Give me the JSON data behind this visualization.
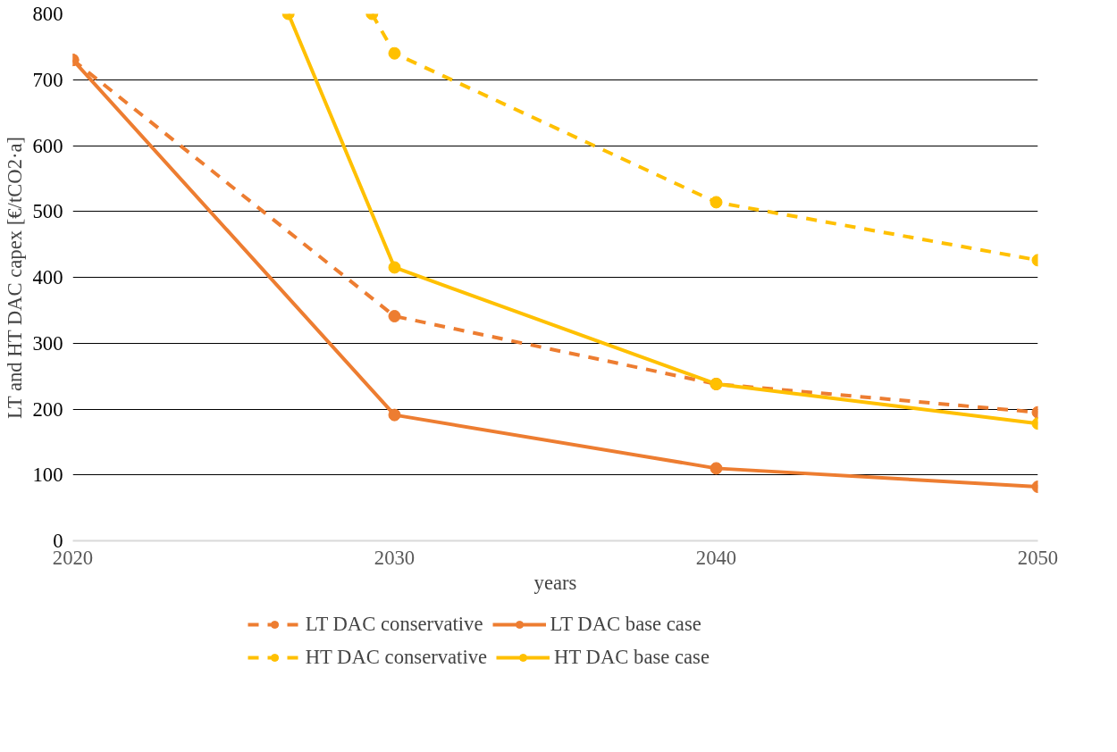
{
  "chart_data": {
    "type": "line",
    "xlabel": "years",
    "ylabel": "LT and HT DAC capex [€/tCO2·a]",
    "x": [
      2020,
      2030,
      2040,
      2050
    ],
    "series": [
      {
        "name": "LT DAC conservative",
        "color": "#ed7d31",
        "line_style": "dashed",
        "values": [
          730,
          341,
          238,
          195
        ]
      },
      {
        "name": "LT DAC base case",
        "color": "#ed7d31",
        "line_style": "solid",
        "values": [
          730,
          191,
          110,
          82
        ]
      },
      {
        "name": "HT DAC conservative",
        "color": "#ffc000",
        "line_style": "dashed",
        "x": [
          2029.3,
          2030,
          2040,
          2050
        ],
        "values": [
          800,
          740,
          514,
          426
        ]
      },
      {
        "name": "HT DAC base case",
        "color": "#ffc000",
        "line_style": "solid",
        "x": [
          2026.7,
          2030,
          2040,
          2050
        ],
        "values": [
          800,
          415,
          238,
          178
        ]
      }
    ],
    "xlim": [
      2020,
      2050
    ],
    "xticks": [
      2020,
      2030,
      2040,
      2050
    ],
    "ylim": [
      0,
      800
    ],
    "yticks": [
      0,
      100,
      200,
      300,
      400,
      500,
      600,
      700,
      800
    ],
    "grid": "y",
    "legend": "bottom",
    "marker": "circle"
  }
}
